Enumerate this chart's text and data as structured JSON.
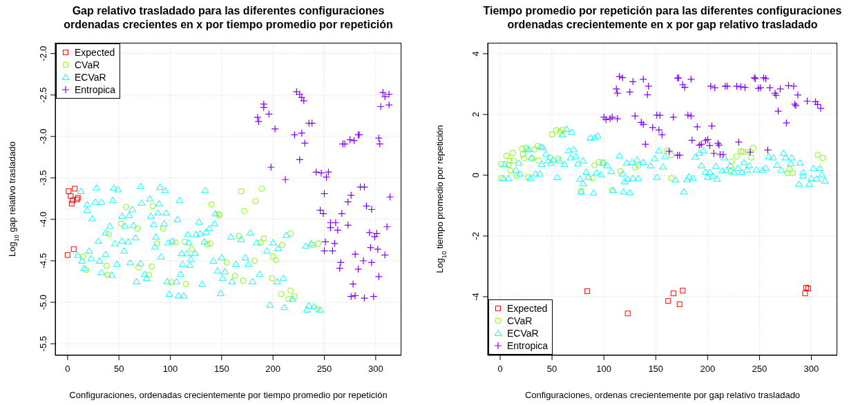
{
  "chart_data": [
    {
      "type": "scatter",
      "title": "Gap relativo trasladado para las diferentes configuraciones\nordenadas crecientes en x por tiempo promedio por repetición",
      "xlabel": "Configuraciones, ordenadas crecientemente por tiempo promedio por repetición",
      "ylabel": "Log$_{10}$ gap relativo trasladado",
      "xlim": [
        -12,
        325
      ],
      "xticks": [
        0,
        50,
        100,
        150,
        200,
        250,
        300
      ],
      "ylim": [
        -5.64,
        -1.87
      ],
      "yticks": [
        {
          "value": -5.5,
          "label": "-5.5"
        },
        {
          "value": -5,
          "label": "-5.0"
        },
        {
          "value": -4.5,
          "label": "-4.5"
        },
        {
          "value": -4,
          "label": "-4.0"
        },
        {
          "value": -3.5,
          "label": "-3.5"
        },
        {
          "value": -3,
          "label": "-3.0"
        },
        {
          "value": -2.5,
          "label": "-2.5"
        },
        {
          "value": -2,
          "label": "-2.0"
        }
      ],
      "grid": true,
      "legend": "top left",
      "series": [
        {
          "name": "Expected",
          "color": "#ff0000",
          "marker": "square",
          "x": [
            1,
            3,
            4,
            5,
            7,
            9,
            10,
            0,
            6
          ],
          "values": [
            -3.66,
            -3.72,
            -3.81,
            -3.77,
            -3.63,
            -3.76,
            -3.74,
            -4.43,
            -4.36
          ]
        },
        {
          "name": "CVaR",
          "color": "#80ff00",
          "marker": "circle",
          "x": [
            15,
            18,
            38,
            39,
            40,
            52,
            57,
            68,
            69,
            79,
            82,
            83,
            87,
            93,
            101,
            105,
            114,
            115,
            121,
            136,
            139,
            140,
            147,
            148,
            169,
            172,
            183,
            189,
            167,
            155,
            163,
            171,
            182,
            191,
            188,
            200,
            203,
            199,
            209,
            208,
            217,
            215,
            221,
            217,
            239,
            244,
            243
          ],
          "values": [
            -4.45,
            -4.61,
            -4.56,
            -4.67,
            -4.18,
            -4.05,
            -3.85,
            -4.11,
            -4.58,
            -4.67,
            -4.57,
            -3.84,
            -4.29,
            -4.11,
            -4.76,
            -4.28,
            -4.27,
            -4.78,
            -4.36,
            -4.3,
            -4.29,
            -3.82,
            -3.94,
            -3.95,
            -3.66,
            -3.9,
            -3.78,
            -3.63,
            -4.2,
            -4.52,
            -4.68,
            -4.74,
            -4.5,
            -4.23,
            -4.28,
            -4.45,
            -4.49,
            -4.71,
            -4.31,
            -4.9,
            -4.86,
            -4.96,
            -4.93,
            -4.17,
            -4.31,
            -4.29,
            -5.08
          ]
        },
        {
          "name": "ECVaR",
          "color": "#00ffff",
          "marker": "triangle",
          "x": [
            13,
            19,
            19,
            24,
            28,
            27,
            33,
            10,
            14,
            21,
            23,
            16,
            30,
            37,
            41,
            31,
            37,
            33,
            43,
            45,
            44,
            49,
            46,
            48,
            53,
            56,
            53,
            55,
            59,
            60,
            63,
            64,
            66,
            61,
            67,
            71,
            72,
            71,
            75,
            77,
            80,
            81,
            84,
            86,
            85,
            88,
            89,
            90,
            95,
            96,
            94,
            91,
            98,
            102,
            97,
            99,
            106,
            108,
            113,
            107,
            109,
            110,
            111,
            112,
            116,
            117,
            118,
            120,
            119,
            124,
            125,
            128,
            129,
            131,
            134,
            133,
            135,
            138,
            142,
            144,
            146,
            143,
            150,
            151,
            149,
            153,
            159,
            164,
            160,
            169,
            173,
            176,
            178,
            180,
            187,
            184,
            194,
            197,
            200,
            205,
            204,
            210,
            211,
            213,
            219,
            232,
            237,
            233,
            235,
            240,
            246
          ],
          "values": [
            -3.66,
            -3.82,
            -3.89,
            -3.99,
            -3.62,
            -3.79,
            -3.79,
            -4.43,
            -4.5,
            -4.38,
            -4.47,
            -4.59,
            -4.26,
            -4.16,
            -4.08,
            -4.5,
            -4.42,
            -4.64,
            -4.67,
            -3.62,
            -3.77,
            -3.64,
            -4.29,
            -4.54,
            -3.96,
            -4.08,
            -4.26,
            -4.38,
            -4.27,
            -3.95,
            -3.88,
            -4.07,
            -4.22,
            -4.52,
            -4.75,
            -3.6,
            -3.8,
            -4.53,
            -4.66,
            -4.71,
            -3.75,
            -3.96,
            -4.06,
            -4.21,
            -4.33,
            -3.92,
            -3.81,
            -3.61,
            -3.65,
            -3.92,
            -4.05,
            -4.45,
            -4.28,
            -4.26,
            -4.75,
            -4.9,
            -4.75,
            -4.92,
            -4.92,
            -4.0,
            -3.77,
            -4.66,
            -4.41,
            -4.54,
            -4.41,
            -4.18,
            -4.28,
            -4.48,
            -4.55,
            -4.41,
            -4.18,
            -4.03,
            -4.17,
            -4.78,
            -3.65,
            -4.27,
            -4.15,
            -4.11,
            -4.5,
            -3.93,
            -4.62,
            -4.05,
            -4.46,
            -4.71,
            -4.89,
            -4.63,
            -4.21,
            -4.54,
            -4.75,
            -4.24,
            -4.46,
            -4.54,
            -4.16,
            -4.75,
            -4.66,
            -4.28,
            -4.38,
            -5.03,
            -4.28,
            -4.35,
            -4.75,
            -4.71,
            -5.06,
            -4.19,
            -4.96,
            -4.32,
            -4.29,
            -5.09,
            -5.04,
            -5.05,
            -5.09
          ]
        },
        {
          "name": "Entropica",
          "color": "#8000ff",
          "marker": "cross",
          "x": [
            223,
            226,
            228,
            230,
            191,
            191,
            196,
            185,
            186,
            202,
            221,
            228,
            231,
            235,
            238,
            226,
            198,
            212,
            268,
            270,
            275,
            279,
            283,
            284,
            303,
            304,
            307,
            309,
            313,
            305,
            313,
            242,
            247,
            254,
            252,
            250,
            285,
            289,
            276,
            273,
            314,
            246,
            249,
            267,
            291,
            296,
            256,
            261,
            256,
            263,
            273,
            311,
            294,
            301,
            299,
            251,
            260,
            250,
            258,
            280,
            295,
            302,
            309,
            266,
            265,
            288,
            296,
            283,
            303,
            278,
            276,
            280,
            289,
            298
          ],
          "values": [
            -2.46,
            -2.49,
            -2.53,
            -2.57,
            -2.61,
            -2.65,
            -2.73,
            -2.77,
            -2.82,
            -2.91,
            -2.98,
            -2.96,
            -3.08,
            -2.84,
            -2.84,
            -3.28,
            -3.37,
            -3.52,
            -3.09,
            -3.09,
            -3.04,
            -3.05,
            -2.98,
            -2.98,
            -3.02,
            -3.09,
            -2.47,
            -2.52,
            -2.49,
            -2.64,
            -2.62,
            -3.43,
            -3.44,
            -3.43,
            -3.49,
            -3.69,
            -3.61,
            -3.61,
            -3.71,
            -3.79,
            -3.73,
            -3.89,
            -3.93,
            -3.93,
            -3.84,
            -3.88,
            -4.04,
            -4.04,
            -4.1,
            -4.13,
            -4.07,
            -4.09,
            -4.16,
            -4.17,
            -4.21,
            -4.27,
            -4.29,
            -4.38,
            -4.38,
            -4.42,
            -4.34,
            -4.36,
            -4.43,
            -4.52,
            -4.59,
            -4.5,
            -4.52,
            -4.6,
            -4.69,
            -4.78,
            -4.93,
            -4.92,
            -4.95,
            -4.93
          ]
        }
      ]
    },
    {
      "type": "scatter",
      "title": "Tiempo promedio por repetición para las diferentes configuraciones\nordenadas crecientemente en x por gap relativo trasladado",
      "xlabel": "Configuraciones, ordenas crecientemente por gap relativo trasladado",
      "ylabel": "Log$_{10}$ tiempo promedio por repetición",
      "xlim": [
        -12,
        325
      ],
      "xticks": [
        0,
        50,
        100,
        150,
        200,
        250,
        300
      ],
      "ylim": [
        -5.93,
        4.36
      ],
      "yticks": [
        -4,
        -2,
        0,
        2,
        4
      ],
      "grid": true,
      "legend": "bottom left",
      "series": [
        {
          "name": "Expected",
          "color": "#ff0000",
          "marker": "square",
          "x": [
            84,
            123,
            162,
            167,
            173,
            176,
            294,
            295,
            297
          ],
          "values": [
            -3.82,
            -4.55,
            -4.14,
            -3.89,
            -4.25,
            -3.8,
            -3.89,
            -3.7,
            -3.73
          ]
        },
        {
          "name": "CVaR",
          "color": "#80ff00",
          "marker": "circle",
          "x": [
            1,
            1,
            6,
            8,
            9,
            10,
            12,
            13,
            16,
            21,
            22,
            23,
            25,
            27,
            31,
            33,
            36,
            37,
            48,
            50,
            54,
            58,
            60,
            56,
            78,
            89,
            91,
            95,
            99,
            108,
            116,
            130,
            133,
            161,
            165,
            165,
            223,
            222,
            228,
            232,
            234,
            239,
            242,
            244,
            279,
            277,
            282,
            306,
            311
          ],
          "values": [
            -0.1,
            0.36,
            0.64,
            0.34,
            0.47,
            0.15,
            0.73,
            0.48,
            -0.02,
            0.87,
            0.68,
            0.56,
            0.9,
            -0.06,
            0.55,
            0.85,
            0.96,
            0.48,
            0.58,
            1.34,
            1.48,
            1.42,
            1.49,
            0.55,
            -0.52,
            -0.1,
            0.33,
            0.43,
            0.42,
            -0.5,
            0.13,
            0.26,
            0.32,
            0.81,
            0.66,
            -0.1,
            0.45,
            0.13,
            0.62,
            0.79,
            0.77,
            0.77,
            0.58,
            0.9,
            0.19,
            0.07,
            0.07,
            0.67,
            0.57
          ]
        },
        {
          "name": "ECVaR",
          "color": "#00ffff",
          "marker": "triangle",
          "x": [
            3,
            8,
            4,
            15,
            19,
            18,
            26,
            28,
            29,
            30,
            34,
            38,
            39,
            41,
            40,
            44,
            46,
            49,
            51,
            55,
            60,
            64,
            69,
            57,
            62,
            66,
            68,
            71,
            73,
            75,
            80,
            77,
            83,
            80,
            78,
            85,
            87,
            91,
            94,
            90,
            93,
            97,
            99,
            103,
            107,
            109,
            115,
            118,
            120,
            122,
            123,
            127,
            128,
            132,
            133,
            138,
            145,
            149,
            151,
            153,
            119,
            125,
            157,
            159,
            169,
            177,
            180,
            182,
            186,
            188,
            192,
            196,
            194,
            198,
            200,
            202,
            205,
            209,
            208,
            214,
            216,
            218,
            222,
            225,
            229,
            233,
            235,
            238,
            240,
            247,
            253,
            256,
            259,
            263,
            267,
            271,
            273,
            275,
            280,
            281,
            289,
            288,
            292,
            292,
            298,
            300,
            302,
            305,
            308,
            310,
            313
          ],
          "values": [
            -0.1,
            -0.1,
            0.36,
            0.17,
            0.05,
            0.4,
            0.85,
            0.85,
            -0.1,
            0.58,
            0.05,
            0.05,
            0.94,
            0.92,
            0.36,
            0.7,
            0.48,
            0.4,
            0.51,
            -0.07,
            1.34,
            1.52,
            1.42,
            0.48,
            0.36,
            0.81,
            0.58,
            0.85,
            0.62,
            0.38,
            0.48,
            -0.12,
            0.11,
            -0.27,
            -0.55,
            -0.06,
            1.23,
            1.24,
            1.3,
            -0.58,
            0.09,
            0.02,
            0.4,
            0.32,
            0.13,
            -0.5,
            0.64,
            0.05,
            -0.21,
            0.41,
            -0.12,
            0.43,
            -0.1,
            0.51,
            -0.1,
            0.43,
            0.32,
            0.55,
            -0.06,
            0.81,
            -0.54,
            -0.57,
            0.28,
            0.62,
            -0.15,
            -0.54,
            -0.14,
            -0.05,
            -0.1,
            0.6,
            0.73,
            0.81,
            0.32,
            0.11,
            -0.06,
            0.1,
            -0.02,
            -0.12,
            0.3,
            0.15,
            0.58,
            0.17,
            0.32,
            0.1,
            0.23,
            0.1,
            0.42,
            0.18,
            0.32,
            0.18,
            0.17,
            0.24,
            0.62,
            0.58,
            0.34,
            0.17,
            0.73,
            0.58,
            0.39,
            0.58,
            0.41,
            -0.29,
            0.1,
            -0.02,
            -0.29,
            -0.1,
            0.23,
            -0.12,
            0.23,
            0.02,
            -0.18
          ]
        },
        {
          "name": "Entropica",
          "color": "#8000ff",
          "marker": "cross",
          "x": [
            115,
            118,
            128,
            138,
            143,
            112,
            113,
            125,
            142,
            100,
            102,
            106,
            108,
            113,
            130,
            136,
            138,
            147,
            153,
            156,
            151,
            154,
            140,
            171,
            172,
            176,
            178,
            184,
            203,
            207,
            217,
            219,
            228,
            232,
            236,
            245,
            246,
            254,
            256,
            249,
            251,
            260,
            265,
            266,
            270,
            278,
            283,
            287,
            284,
            285,
            296,
            304,
            306,
            309,
            268,
            276,
            167,
            181,
            184,
            190,
            204,
            185,
            192,
            194,
            198,
            200,
            202,
            210,
            211,
            206,
            212,
            215,
            230,
            241,
            258,
            163,
            171,
            173
          ],
          "values": [
            3.25,
            3.21,
            3.08,
            3.16,
            2.93,
            2.84,
            2.7,
            2.74,
            2.65,
            1.91,
            1.83,
            1.86,
            1.91,
            1.86,
            1.95,
            1.74,
            1.67,
            1.57,
            1.49,
            1.33,
            1.98,
            1.97,
            1.02,
            3.2,
            3.2,
            2.98,
            2.89,
            3.16,
            2.93,
            2.88,
            2.93,
            2.93,
            2.93,
            2.91,
            2.89,
            3.21,
            3.18,
            3.21,
            3.18,
            2.86,
            2.88,
            2.88,
            2.7,
            2.63,
            2.84,
            2.95,
            2.93,
            2.64,
            2.34,
            2.29,
            2.44,
            2.42,
            2.33,
            2.2,
            2.11,
            1.72,
            1.91,
            1.98,
            1.95,
            1.59,
            1.62,
            1.15,
            0.99,
            1.02,
            1.14,
            1.17,
            0.98,
            1.05,
            0.99,
            0.72,
            0.68,
            0.68,
            1.09,
            0.76,
            0.83,
            0.79,
            0.66,
            0.66
          ]
        }
      ]
    }
  ]
}
